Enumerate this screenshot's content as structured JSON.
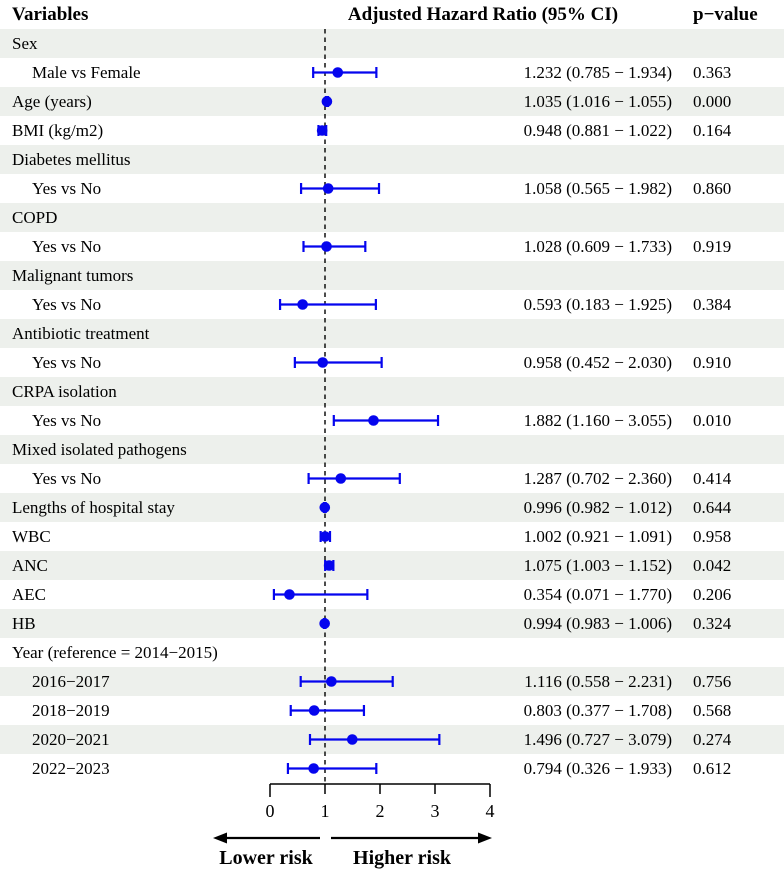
{
  "header": {
    "variables": "Variables",
    "hazard_ratio": "Adjusted Hazard Ratio (95% CI)",
    "p_value": "p−value"
  },
  "chart_data": {
    "type": "forest",
    "title": "Adjusted Hazard Ratio (95% CI)",
    "x_axis": {
      "min": 0,
      "max": 4,
      "ticks": [
        0,
        1,
        2,
        3,
        4
      ],
      "reference_line": 1
    },
    "arrows": {
      "left_label": "Lower risk",
      "right_label": "Higher risk"
    },
    "colors": {
      "marker": "#0505ee",
      "row_alt": "#edf0ec",
      "reference_line": "#000000",
      "axis": "#000000"
    },
    "legend_position": "none",
    "grid": false,
    "rows": [
      {
        "label": "Sex",
        "indent": false
      },
      {
        "label": "Male vs Female",
        "indent": true,
        "est": 1.232,
        "lo": 0.785,
        "hi": 1.934,
        "est_text": "1.232 (0.785 − 1.934)",
        "p": "0.363"
      },
      {
        "label": "Age (years)",
        "indent": false,
        "est": 1.035,
        "lo": 1.016,
        "hi": 1.055,
        "est_text": "1.035 (1.016 − 1.055)",
        "p": "0.000"
      },
      {
        "label": "BMI (kg/m2)",
        "indent": false,
        "est": 0.948,
        "lo": 0.881,
        "hi": 1.022,
        "est_text": "0.948 (0.881 − 1.022)",
        "p": "0.164"
      },
      {
        "label": "Diabetes mellitus",
        "indent": false
      },
      {
        "label": "Yes vs No",
        "indent": true,
        "est": 1.058,
        "lo": 0.565,
        "hi": 1.982,
        "est_text": "1.058 (0.565 − 1.982)",
        "p": "0.860"
      },
      {
        "label": "COPD",
        "indent": false
      },
      {
        "label": "Yes vs No",
        "indent": true,
        "est": 1.028,
        "lo": 0.609,
        "hi": 1.733,
        "est_text": "1.028 (0.609 − 1.733)",
        "p": "0.919"
      },
      {
        "label": "Malignant tumors",
        "indent": false
      },
      {
        "label": "Yes vs No",
        "indent": true,
        "est": 0.593,
        "lo": 0.183,
        "hi": 1.925,
        "est_text": "0.593 (0.183 − 1.925)",
        "p": "0.384"
      },
      {
        "label": "Antibiotic treatment",
        "indent": false
      },
      {
        "label": "Yes vs No",
        "indent": true,
        "est": 0.958,
        "lo": 0.452,
        "hi": 2.03,
        "est_text": "0.958 (0.452 − 2.030)",
        "p": "0.910"
      },
      {
        "label": "CRPA isolation",
        "indent": false
      },
      {
        "label": "Yes vs No",
        "indent": true,
        "est": 1.882,
        "lo": 1.16,
        "hi": 3.055,
        "est_text": "1.882 (1.160 − 3.055)",
        "p": "0.010"
      },
      {
        "label": "Mixed isolated pathogens",
        "indent": false
      },
      {
        "label": "Yes vs No",
        "indent": true,
        "est": 1.287,
        "lo": 0.702,
        "hi": 2.36,
        "est_text": "1.287 (0.702 − 2.360)",
        "p": "0.414"
      },
      {
        "label": "Lengths of hospital stay",
        "indent": false,
        "est": 0.996,
        "lo": 0.982,
        "hi": 1.012,
        "est_text": "0.996 (0.982 − 1.012)",
        "p": "0.644"
      },
      {
        "label": "WBC",
        "indent": false,
        "est": 1.002,
        "lo": 0.921,
        "hi": 1.091,
        "est_text": "1.002 (0.921 − 1.091)",
        "p": "0.958"
      },
      {
        "label": "ANC",
        "indent": false,
        "est": 1.075,
        "lo": 1.003,
        "hi": 1.152,
        "est_text": "1.075 (1.003 − 1.152)",
        "p": "0.042"
      },
      {
        "label": "AEC",
        "indent": false,
        "est": 0.354,
        "lo": 0.071,
        "hi": 1.77,
        "est_text": "0.354 (0.071 − 1.770)",
        "p": "0.206"
      },
      {
        "label": "HB",
        "indent": false,
        "est": 0.994,
        "lo": 0.983,
        "hi": 1.006,
        "est_text": "0.994 (0.983 − 1.006)",
        "p": "0.324"
      },
      {
        "label": "Year (reference = 2014−2015)",
        "indent": false
      },
      {
        "label": "2016−2017",
        "indent": true,
        "est": 1.116,
        "lo": 0.558,
        "hi": 2.231,
        "est_text": "1.116 (0.558 − 2.231)",
        "p": "0.756"
      },
      {
        "label": "2018−2019",
        "indent": true,
        "est": 0.803,
        "lo": 0.377,
        "hi": 1.708,
        "est_text": "0.803 (0.377 − 1.708)",
        "p": "0.568"
      },
      {
        "label": "2020−2021",
        "indent": true,
        "est": 1.496,
        "lo": 0.727,
        "hi": 3.079,
        "est_text": "1.496 (0.727 − 3.079)",
        "p": "0.274"
      },
      {
        "label": "2022−2023",
        "indent": true,
        "est": 0.794,
        "lo": 0.326,
        "hi": 1.933,
        "est_text": "0.794 (0.326 − 1.933)",
        "p": "0.612"
      }
    ]
  }
}
